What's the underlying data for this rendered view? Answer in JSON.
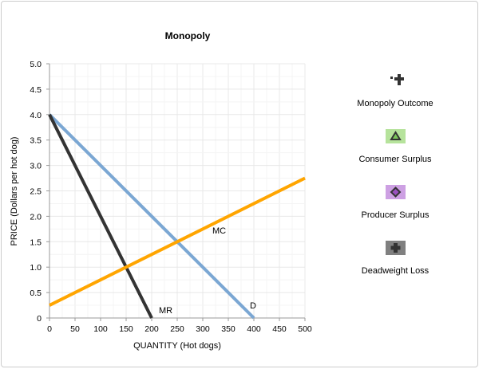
{
  "chart_data": {
    "type": "line",
    "title": "Monopoly",
    "xlabel": "QUANTITY (Hot dogs)",
    "ylabel": "PRICE (Dollars per hot dog)",
    "xlim": [
      0,
      500
    ],
    "ylim": [
      0,
      5
    ],
    "x_ticks": [
      "0",
      "50",
      "100",
      "150",
      "200",
      "250",
      "300",
      "350",
      "400",
      "450",
      "500"
    ],
    "y_ticks": [
      "0",
      "0.5",
      "1.0",
      "1.5",
      "2.0",
      "2.5",
      "3.0",
      "3.5",
      "4.0",
      "4.5",
      "5.0"
    ],
    "grid": true,
    "series": [
      {
        "name": "D",
        "color": "#7ba7d3",
        "points": [
          [
            0,
            4
          ],
          [
            400,
            0
          ]
        ]
      },
      {
        "name": "MR",
        "color": "#333333",
        "points": [
          [
            0,
            4
          ],
          [
            200,
            0
          ]
        ]
      },
      {
        "name": "MC",
        "color": "#ffa500",
        "points": [
          [
            0,
            0.25
          ],
          [
            500,
            2.75
          ]
        ]
      }
    ],
    "legend_placement": "right",
    "legend": [
      {
        "label": "Monopoly Outcome",
        "icon": "dashed-cross-icon",
        "color": "#333333"
      },
      {
        "label": "Consumer Surplus",
        "icon": "triangle-icon",
        "color": "#b6e39c"
      },
      {
        "label": "Producer Surplus",
        "icon": "diamond-icon",
        "color": "#cda0e3"
      },
      {
        "label": "Deadweight Loss",
        "icon": "plus-icon",
        "color": "#808080"
      }
    ]
  }
}
